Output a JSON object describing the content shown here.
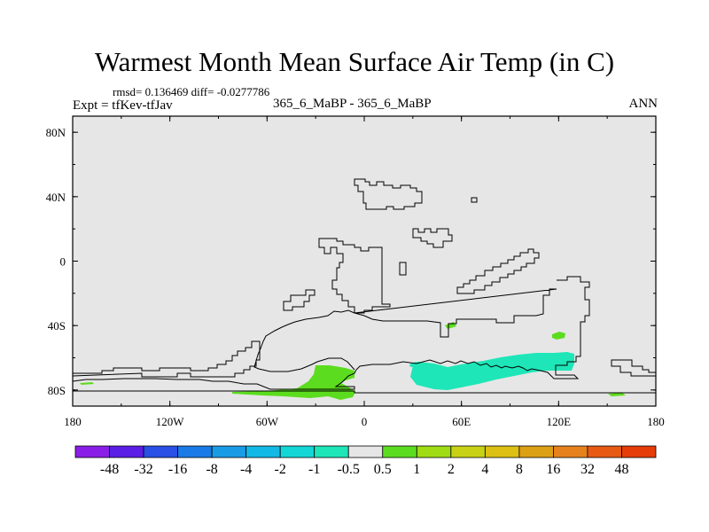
{
  "header": {
    "title": "Warmest Month Mean Surface Air Temp (in C)",
    "stats": "rmsd= 0.136469 diff= -0.0277786",
    "experiment": "Expt = tfKev-tfJav",
    "center_label": "365_6_MaBP - 365_6_MaBP",
    "period": "ANN"
  },
  "map": {
    "type": "filled-contour-difference-map",
    "background_color": "#e6e6e6",
    "lon_range": [
      -180,
      180
    ],
    "lat_range": [
      -90,
      90
    ],
    "x_ticks": [
      "180",
      "120W",
      "60W",
      "0",
      "60E",
      "120E",
      "180"
    ],
    "y_ticks": [
      "80N",
      "40N",
      "0",
      "40S",
      "80S"
    ],
    "y_tick_lats": [
      80,
      40,
      0,
      -40,
      -80
    ]
  },
  "colorbar": {
    "colors": [
      "#8a1ee6",
      "#5a1ee6",
      "#2a50e6",
      "#1a7be6",
      "#1a9be6",
      "#12b8e6",
      "#14d6d6",
      "#1ee6b8",
      "#e6e6e6",
      "#5cdc1e",
      "#a0dc14",
      "#c8d214",
      "#dcc014",
      "#dca014",
      "#e6821e",
      "#e65a14",
      "#e63c0a"
    ],
    "labels": [
      "-48",
      "-32",
      "-16",
      "-8",
      "-4",
      "-2",
      "-1",
      "-0.5",
      "0.5",
      "1",
      "2",
      "4",
      "8",
      "16",
      "32",
      "48"
    ]
  }
}
